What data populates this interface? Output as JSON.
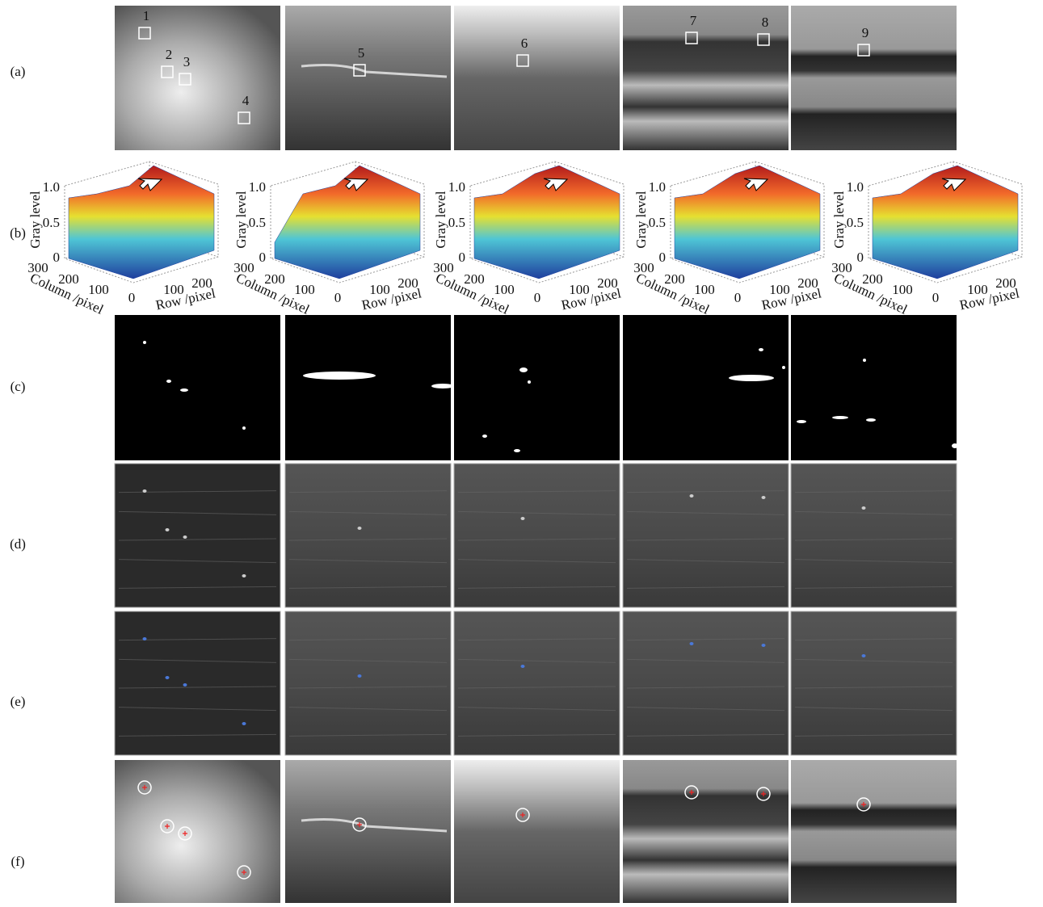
{
  "rows": [
    "(a)",
    "(b)",
    "(c)",
    "(d)",
    "(e)",
    "(f)"
  ],
  "markers": [
    "1",
    "2",
    "3",
    "4",
    "5",
    "6",
    "7",
    "8",
    "9"
  ],
  "plots": [
    {
      "zlabel": "Gray level",
      "collabel": "Column /pixel",
      "rowlabel": "Row /pixel",
      "zticks": [
        "0",
        "0.5",
        "1.0"
      ],
      "colticks": [
        "300",
        "200",
        "100",
        "0"
      ],
      "rowticks": [
        "100",
        "200"
      ]
    },
    {
      "zlabel": "Gray level",
      "collabel": "Column /pixel",
      "rowlabel": "Row /pixel",
      "zticks": [
        "0",
        "0.5",
        "1.0"
      ],
      "colticks": [
        "300",
        "200",
        "100",
        "0"
      ],
      "rowticks": [
        "100",
        "200"
      ]
    },
    {
      "zlabel": "Gray level",
      "collabel": "Column /pixel",
      "rowlabel": "Row /pixel",
      "zticks": [
        "0",
        "0.5",
        "1.0"
      ],
      "colticks": [
        "300",
        "200",
        "100",
        "0"
      ],
      "rowticks": [
        "100",
        "200"
      ]
    },
    {
      "zlabel": "Gray level",
      "collabel": "Column /pixel",
      "rowlabel": "Row /pixel",
      "zticks": [
        "0",
        "0.5",
        "1.0"
      ],
      "colticks": [
        "300",
        "200",
        "100",
        "0"
      ],
      "rowticks": [
        "100",
        "200"
      ]
    },
    {
      "zlabel": "Gray level",
      "collabel": "Column /pixel",
      "rowlabel": "Row /pixel",
      "zticks": [
        "0",
        "0.5",
        "1.0"
      ],
      "colticks": [
        "300",
        "200",
        "100",
        "0"
      ],
      "rowticks": [
        "100",
        "200"
      ]
    }
  ]
}
